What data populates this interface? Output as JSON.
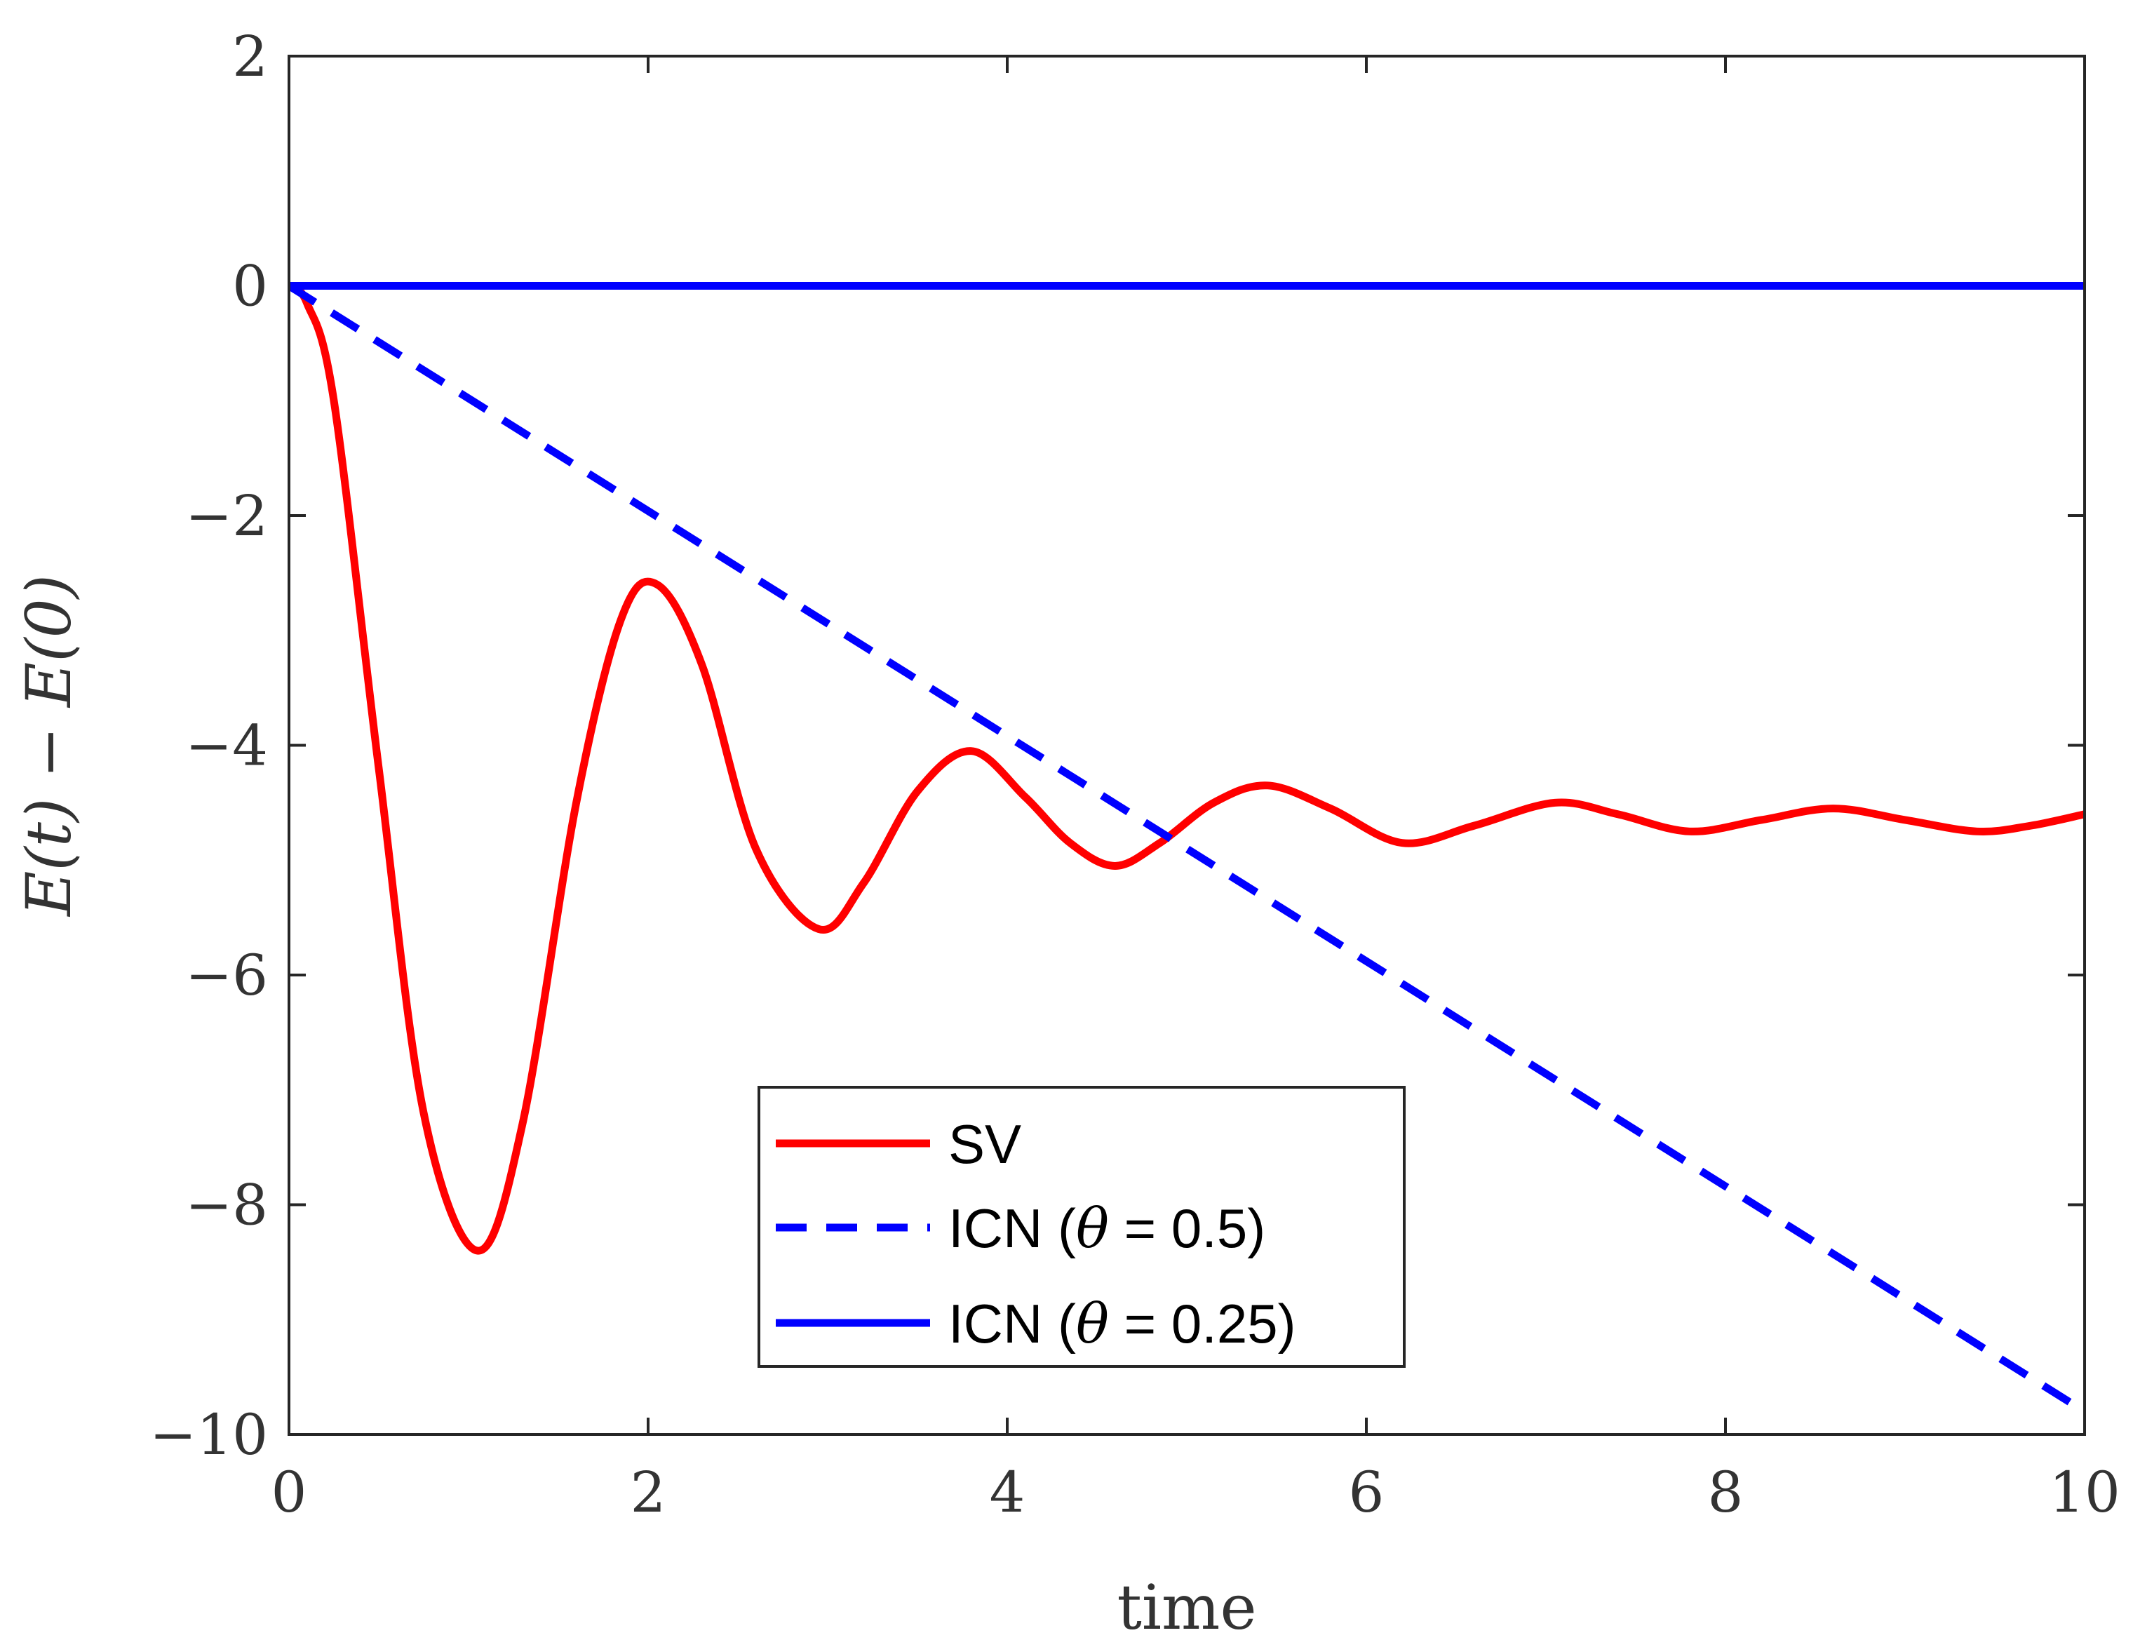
{
  "chart_data": {
    "type": "line",
    "title": "",
    "xlabel": "time",
    "ylabel": "E(t) − E(0)",
    "xlim": [
      0,
      10
    ],
    "ylim": [
      -10,
      2
    ],
    "xticks": [
      0,
      2,
      4,
      6,
      8,
      10
    ],
    "yticks": [
      -10,
      -8,
      -6,
      -4,
      -2,
      0,
      2
    ],
    "xtick_labels": [
      "0",
      "2",
      "4",
      "6",
      "8",
      "10"
    ],
    "ytick_labels": [
      "−10",
      "−8",
      "−6",
      "−4",
      "−2",
      "0",
      "2"
    ],
    "grid": false,
    "legend_position": "lower-center",
    "series": [
      {
        "name": "SV",
        "legend_prefix": "SV",
        "legend_theta": "",
        "color": "#ff0000",
        "style": "solid",
        "x": [
          0,
          0.1,
          0.25,
          0.5,
          0.75,
          1.05,
          1.3,
          1.6,
          1.85,
          2.05,
          2.3,
          2.6,
          2.95,
          3.2,
          3.5,
          3.8,
          4.1,
          4.35,
          4.6,
          4.85,
          5.15,
          5.45,
          5.8,
          6.2,
          6.6,
          7.05,
          7.4,
          7.8,
          8.2,
          8.6,
          9.0,
          9.4,
          9.7,
          10
        ],
        "y": [
          0,
          -0.15,
          -1.0,
          -4.2,
          -7.2,
          -8.4,
          -7.3,
          -4.5,
          -2.9,
          -2.6,
          -3.3,
          -4.9,
          -5.6,
          -5.2,
          -4.4,
          -4.05,
          -4.45,
          -4.85,
          -5.05,
          -4.85,
          -4.5,
          -4.35,
          -4.55,
          -4.85,
          -4.7,
          -4.5,
          -4.6,
          -4.75,
          -4.65,
          -4.55,
          -4.65,
          -4.75,
          -4.7,
          -4.6
        ]
      },
      {
        "name": "ICN (θ = 0.5)",
        "legend_prefix": "ICN (",
        "legend_theta": "θ",
        "legend_suffix": " = 0.5)",
        "color": "#0000ff",
        "style": "dashed",
        "x": [
          0,
          10
        ],
        "y": [
          0,
          -9.8
        ]
      },
      {
        "name": "ICN (θ = 0.25)",
        "legend_prefix": "ICN (",
        "legend_theta": "θ",
        "legend_suffix": " = 0.25)",
        "color": "#0000ff",
        "style": "solid",
        "x": [
          0,
          10
        ],
        "y": [
          0,
          0
        ]
      }
    ]
  }
}
